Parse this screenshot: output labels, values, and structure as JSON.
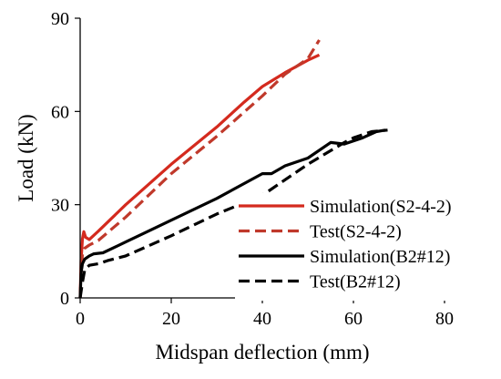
{
  "chart_data": {
    "type": "line",
    "title": "",
    "xlabel": "Midspan deflection (mm)",
    "ylabel": "Load (kN)",
    "xlim": [
      0,
      80
    ],
    "ylim": [
      0,
      90
    ],
    "x_ticks": [
      0,
      20,
      40,
      60,
      80
    ],
    "y_ticks": [
      0,
      30,
      60,
      90
    ],
    "x_tick_labels": [
      "0",
      "20",
      "40",
      "60",
      "80"
    ],
    "y_tick_labels": [
      "0",
      "30",
      "60",
      "90"
    ],
    "grid": false,
    "legend_position": "bottom-right",
    "series": [
      {
        "name": "Simulation(S2-4-2)",
        "color": "#d42a1e",
        "dash": "solid",
        "x": [
          0,
          0.2,
          0.5,
          0.8,
          1.2,
          2,
          4,
          10,
          20,
          30,
          36,
          40,
          45,
          50,
          52.5
        ],
        "y": [
          0,
          12,
          19,
          21.3,
          19.5,
          18.8,
          21.5,
          30,
          43,
          55,
          63,
          68,
          72.5,
          76.5,
          78.2
        ]
      },
      {
        "name": "Test(S2-4-2)",
        "color": "#c0392b",
        "dash": "dashed",
        "x": [
          0,
          0.2,
          0.5,
          1,
          2,
          4,
          10,
          20,
          30,
          40,
          45,
          50,
          52.5
        ],
        "y": [
          0,
          8,
          14,
          16,
          17,
          18.5,
          26,
          40,
          52,
          65,
          72,
          77,
          83
        ]
      },
      {
        "name": "Simulation(B2#12)",
        "color": "#000000",
        "dash": "solid",
        "x": [
          0,
          0.2,
          0.5,
          1,
          2,
          3,
          5,
          10,
          20,
          30,
          40,
          42,
          45,
          50,
          55,
          58,
          62,
          65,
          67
        ],
        "y": [
          0,
          8,
          11,
          12.5,
          13.5,
          14.2,
          14.5,
          18,
          25,
          32,
          40,
          40,
          42.5,
          45,
          50,
          49.5,
          51.5,
          53.5,
          54
        ]
      },
      {
        "name": "Test(B2#12)",
        "color": "#000000",
        "dash": "dashed",
        "x": [
          0,
          0.5,
          1,
          2,
          4,
          6,
          10,
          20,
          30,
          40,
          50,
          58,
          60,
          64,
          67.5
        ],
        "y": [
          0,
          5,
          9,
          10.5,
          11,
          12,
          13.5,
          20,
          27,
          33,
          43,
          50,
          51.5,
          53.5,
          54
        ]
      }
    ]
  }
}
